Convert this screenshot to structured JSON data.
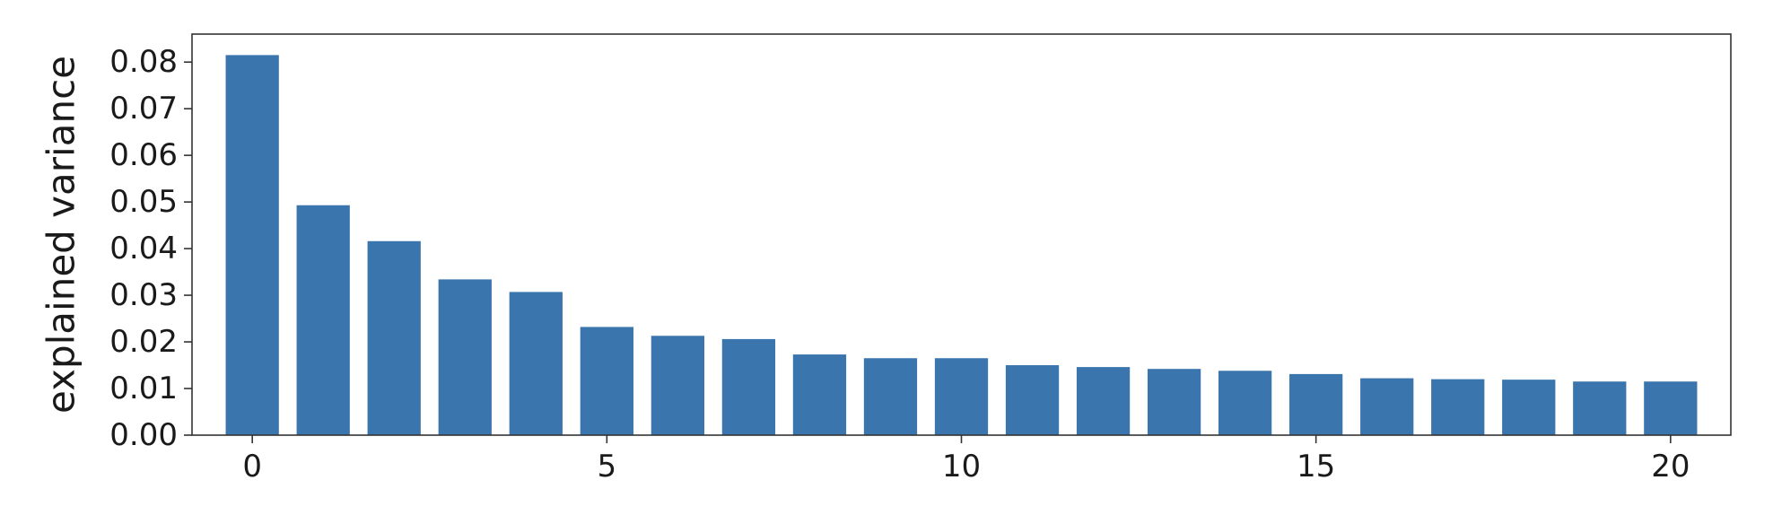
{
  "chart_data": {
    "type": "bar",
    "xlabel": "",
    "ylabel": "explained variance",
    "x": [
      0,
      1,
      2,
      3,
      4,
      5,
      6,
      7,
      8,
      9,
      10,
      11,
      12,
      13,
      14,
      15,
      16,
      17,
      18,
      19,
      20
    ],
    "values": [
      0.0815,
      0.0493,
      0.0416,
      0.0334,
      0.0307,
      0.0232,
      0.0213,
      0.0206,
      0.0173,
      0.0165,
      0.0165,
      0.015,
      0.0146,
      0.0142,
      0.0138,
      0.0131,
      0.0122,
      0.012,
      0.0119,
      0.0115,
      0.0115
    ],
    "ylim": [
      0.0,
      0.086
    ],
    "xlim": [
      -0.85,
      20.85
    ],
    "yticks": [
      0.0,
      0.01,
      0.02,
      0.03,
      0.04,
      0.05,
      0.06,
      0.07,
      0.08
    ],
    "ytick_labels": [
      "0.00",
      "0.01",
      "0.02",
      "0.03",
      "0.04",
      "0.05",
      "0.06",
      "0.07",
      "0.08"
    ],
    "xticks": [
      0,
      5,
      10,
      15,
      20
    ],
    "xtick_labels": [
      "0",
      "5",
      "10",
      "15",
      "20"
    ],
    "grid": false,
    "bar_color": "#3a75ad"
  }
}
